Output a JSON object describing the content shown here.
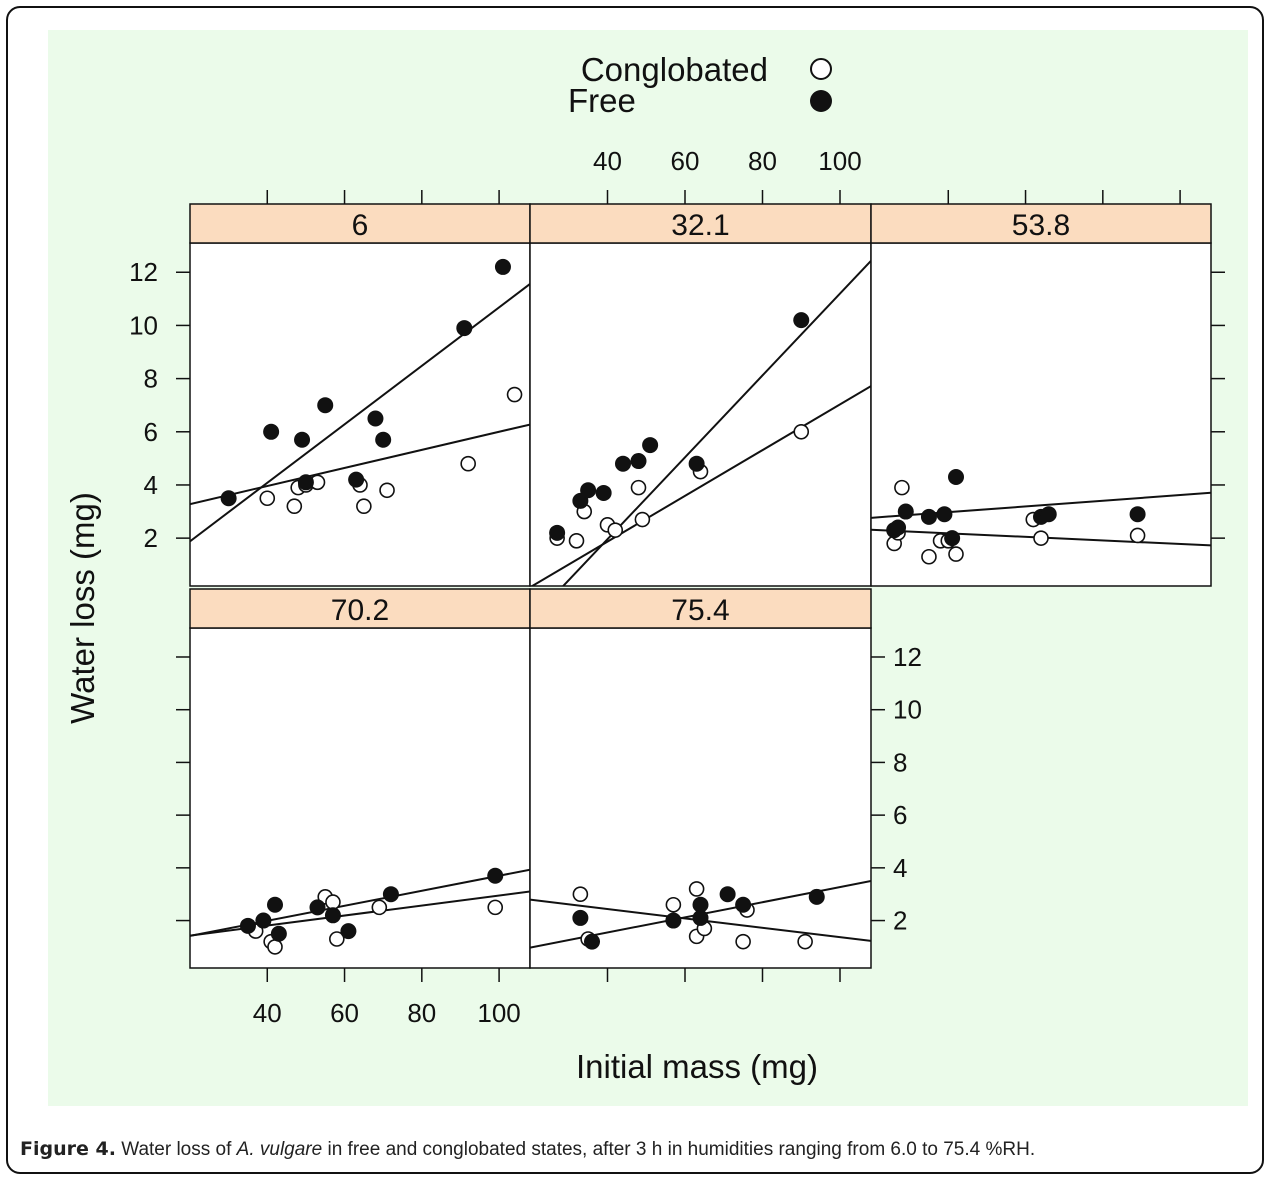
{
  "chart_data": {
    "type": "scatter",
    "xlabel": "Initial mass (mg)",
    "ylabel": "Water loss (mg)",
    "xlim": [
      20,
      108
    ],
    "ylim": [
      0.2,
      13.1
    ],
    "x_ticks": [
      "40",
      "60",
      "80",
      "100"
    ],
    "y_ticks": [
      "2",
      "4",
      "6",
      "8",
      "10",
      "12"
    ],
    "legend": {
      "placement": "top-center",
      "entries": [
        {
          "name": "Conglobated",
          "marker": "open-circle"
        },
        {
          "name": "Free",
          "marker": "filled-circle"
        }
      ]
    },
    "panels": [
      {
        "label": "6",
        "series": [
          {
            "name": "Conglobated",
            "points": [
              [
                40,
                3.5
              ],
              [
                47,
                3.2
              ],
              [
                48,
                3.9
              ],
              [
                50,
                4
              ],
              [
                53,
                4.1
              ],
              [
                64,
                4
              ],
              [
                65,
                3.2
              ],
              [
                71,
                3.8
              ],
              [
                92,
                4.8
              ],
              [
                104,
                7.4
              ]
            ],
            "fit": [
              2.6,
              0.034
            ]
          },
          {
            "name": "Free",
            "points": [
              [
                30,
                3.5
              ],
              [
                41,
                6
              ],
              [
                49,
                5.7
              ],
              [
                50,
                4.1
              ],
              [
                55,
                7
              ],
              [
                63,
                4.2
              ],
              [
                68,
                6.5
              ],
              [
                70,
                5.7
              ],
              [
                91,
                9.9
              ],
              [
                101,
                12.2
              ]
            ],
            "fit": [
              -0.32,
              0.11
            ]
          }
        ]
      },
      {
        "label": "32.1",
        "series": [
          {
            "name": "Conglobated",
            "points": [
              [
                27,
                2
              ],
              [
                32,
                1.9
              ],
              [
                34,
                3
              ],
              [
                40,
                2.5
              ],
              [
                42,
                2.3
              ],
              [
                48,
                3.9
              ],
              [
                49,
                2.7
              ],
              [
                64,
                4.5
              ],
              [
                90,
                6
              ]
            ],
            "fit": [
              -1.57,
              0.086
            ]
          },
          {
            "name": "Free",
            "points": [
              [
                27,
                2.2
              ],
              [
                33,
                3.4
              ],
              [
                35,
                3.8
              ],
              [
                39,
                3.7
              ],
              [
                44,
                4.8
              ],
              [
                48,
                4.9
              ],
              [
                51,
                5.5
              ],
              [
                63,
                4.8
              ],
              [
                90,
                10.2
              ]
            ],
            "fit": [
              -4.2,
              0.154
            ]
          }
        ]
      },
      {
        "label": "53.8",
        "series": [
          {
            "name": "Conglobated",
            "points": [
              [
                26,
                1.8
              ],
              [
                27,
                2.2
              ],
              [
                28,
                3.9
              ],
              [
                35,
                1.3
              ],
              [
                38,
                1.9
              ],
              [
                40,
                1.9
              ],
              [
                42,
                1.4
              ],
              [
                62,
                2.7
              ],
              [
                64,
                2
              ],
              [
                89,
                2.1
              ]
            ],
            "fit": [
              2.45,
              -0.0067
            ]
          },
          {
            "name": "Free",
            "points": [
              [
                26,
                2.3
              ],
              [
                27,
                2.4
              ],
              [
                29,
                3
              ],
              [
                35,
                2.8
              ],
              [
                39,
                2.9
              ],
              [
                41,
                2
              ],
              [
                42,
                4.3
              ],
              [
                64,
                2.8
              ],
              [
                66,
                2.9
              ],
              [
                89,
                2.9
              ]
            ],
            "fit": [
              2.55,
              0.0107
            ]
          }
        ]
      },
      {
        "label": "70.2",
        "series": [
          {
            "name": "Conglobated",
            "points": [
              [
                37,
                1.6
              ],
              [
                41,
                1.2
              ],
              [
                42,
                1
              ],
              [
                55,
                2.9
              ],
              [
                57,
                2.7
              ],
              [
                58,
                1.3
              ],
              [
                69,
                2.5
              ],
              [
                99,
                2.5
              ]
            ],
            "fit": [
              1.05,
              0.019
            ]
          },
          {
            "name": "Free",
            "points": [
              [
                35,
                1.8
              ],
              [
                39,
                2
              ],
              [
                42,
                2.6
              ],
              [
                43,
                1.5
              ],
              [
                53,
                2.5
              ],
              [
                57,
                2.2
              ],
              [
                61,
                1.6
              ],
              [
                72,
                3
              ],
              [
                99,
                3.7
              ]
            ],
            "fit": [
              0.85,
              0.0285
            ]
          }
        ]
      },
      {
        "label": "75.4",
        "series": [
          {
            "name": "Conglobated",
            "points": [
              [
                33,
                3
              ],
              [
                35,
                1.3
              ],
              [
                57,
                2.6
              ],
              [
                63,
                3.2
              ],
              [
                63,
                1.4
              ],
              [
                65,
                1.7
              ],
              [
                75,
                1.2
              ],
              [
                76,
                2.4
              ],
              [
                91,
                1.2
              ]
            ],
            "fit": [
              3.15,
              -0.0178
            ]
          },
          {
            "name": "Free",
            "points": [
              [
                33,
                2.1
              ],
              [
                36,
                1.2
              ],
              [
                57,
                2
              ],
              [
                64,
                2.6
              ],
              [
                64,
                2.1
              ],
              [
                71,
                3
              ],
              [
                75,
                2.6
              ],
              [
                94,
                2.9
              ]
            ],
            "fit": [
              0.4,
              0.0287
            ]
          }
        ]
      }
    ]
  },
  "caption": {
    "label": "Figure 4.",
    "text_before": " Water loss of ",
    "species": "A. vulgare",
    "text_after": " in free and conglobated states, after 3 h in humidities ranging from 6.0 to 75.4 %RH."
  }
}
